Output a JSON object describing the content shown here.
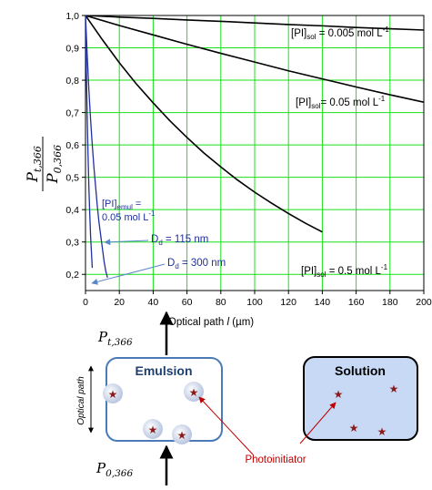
{
  "chart_data": {
    "type": "line",
    "xlabel": "Optical path l (µm)",
    "xlabel_text": "Optical path",
    "xlabel_var": "l",
    "xlabel_unit": "(µm)",
    "xlim": [
      0,
      200
    ],
    "ylim": [
      0.15,
      1.0
    ],
    "x_ticks": [
      0,
      20,
      40,
      60,
      80,
      100,
      120,
      140,
      160,
      180,
      200
    ],
    "x_tick_labels": [
      "0",
      "20",
      "40",
      "60",
      "80",
      "100",
      "120",
      "140",
      "160",
      "180",
      "200"
    ],
    "y_ticks": [
      0.2,
      0.3,
      0.4,
      0.5,
      0.6,
      0.7,
      0.8,
      0.9,
      1.0
    ],
    "y_tick_labels": [
      "0,2",
      "0,3",
      "0,4",
      "0,5",
      "0,6",
      "0,7",
      "0,8",
      "0,9",
      "1,0"
    ],
    "grid": true,
    "ylabel_num": "P",
    "ylabel_num_sub": "t,366",
    "ylabel_den": "P",
    "ylabel_den_sub": "0,366",
    "series": [
      {
        "x": [
          0,
          20,
          40,
          60,
          80,
          100,
          120,
          140,
          160,
          180,
          200
        ],
        "y": [
          1.0,
          0.995,
          0.991,
          0.986,
          0.982,
          0.977,
          0.972,
          0.968,
          0.963,
          0.959,
          0.955
        ],
        "color": "#000000"
      },
      {
        "x": [
          0,
          20,
          40,
          60,
          80,
          100,
          120,
          140,
          160,
          180,
          200
        ],
        "y": [
          1.0,
          0.969,
          0.94,
          0.911,
          0.883,
          0.856,
          0.829,
          0.804,
          0.779,
          0.755,
          0.732
        ],
        "color": "#000000"
      },
      {
        "x": [
          0,
          10,
          20,
          30,
          40,
          50,
          60,
          70,
          80,
          90,
          100,
          110,
          120,
          130,
          140
        ],
        "y": [
          1.0,
          0.925,
          0.854,
          0.789,
          0.73,
          0.674,
          0.623,
          0.575,
          0.532,
          0.491,
          0.454,
          0.42,
          0.388,
          0.358,
          0.331
        ],
        "color": "#000000"
      },
      {
        "x": [
          0,
          1,
          2,
          3,
          4,
          5,
          6,
          7,
          8,
          9,
          10,
          11,
          12,
          13
        ],
        "y": [
          1.0,
          0.88,
          0.77,
          0.68,
          0.6,
          0.53,
          0.47,
          0.41,
          0.36,
          0.32,
          0.28,
          0.24,
          0.21,
          0.19
        ],
        "color": "#1f2fa0"
      },
      {
        "x": [
          0,
          0.5,
          1,
          1.5,
          2,
          2.5,
          3,
          3.5,
          4
        ],
        "y": [
          1.0,
          0.83,
          0.69,
          0.57,
          0.47,
          0.39,
          0.32,
          0.27,
          0.22
        ],
        "color": "#1f2fa0"
      }
    ],
    "annotations": {
      "sol_0005": {
        "prefix": "[PI]",
        "sub": "sol",
        "mid": " = 0.005 mol L",
        "sup": "-1"
      },
      "sol_005": {
        "prefix": "[PI]",
        "sub": "sol",
        "mid": "= 0.05 mol L",
        "sup": "-1"
      },
      "sol_05": {
        "prefix": "[PI]",
        "sub": "sol",
        "mid": " = 0.5 mol L",
        "sup": "-1"
      },
      "emul_line1_prefix": "[PI]",
      "emul_line1_sub": "emul",
      "emul_line1_mid": " =",
      "emul_line2": "0.05 mol L",
      "emul_line2_sup": "-1",
      "dd115_prefix": "D",
      "dd115_sub": "d",
      "dd115_mid": " = 115 nm",
      "dd300_prefix": "D",
      "dd300_sub": "d",
      "dd300_mid": " = 300 nm"
    }
  },
  "diagram": {
    "pt_label": "P",
    "pt_sub": "t,366",
    "p0_label": "P",
    "p0_sub": "0,366",
    "optical_path_label": "Optical path",
    "emulsion_label": "Emulsion",
    "solution_label": "Solution",
    "photoinitiator_label": "Photoinitiator",
    "colors": {
      "box_border": "#4a7bb7",
      "solution_fill": "#c7d9f5",
      "star": "#8b1a1a",
      "arrow_red": "#c00000",
      "label_red": "#c00000"
    }
  }
}
